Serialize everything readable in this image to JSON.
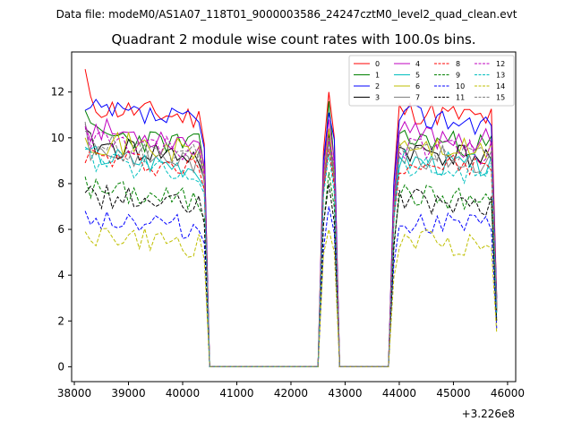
{
  "header": {
    "datafile": "Data file: modeM0/AS1A07_118T01_9000003586_24247cztM0_level2_quad_clean.evt"
  },
  "chart_data": {
    "type": "line",
    "title": "Quadrant 2 module wise count rates with 100.0s bins.",
    "xlabel": "",
    "ylabel": "",
    "x_offset_label": "+3.226e8",
    "xlim": [
      37950,
      46150
    ],
    "ylim": [
      -0.65,
      13.75
    ],
    "xticks": [
      38000,
      39000,
      40000,
      41000,
      42000,
      43000,
      44000,
      45000,
      46000
    ],
    "xtick_labels": [
      "38000",
      "39000",
      "40000",
      "41000",
      "42000",
      "43000",
      "44000",
      "45000",
      "46000"
    ],
    "yticks": [
      0,
      2,
      4,
      6,
      8,
      10,
      12
    ],
    "ytick_labels": [
      "0",
      "2",
      "4",
      "6",
      "8",
      "10",
      "12"
    ],
    "legend_position": "top-right",
    "legend_columns": 4,
    "segments": [
      {
        "x_start": 38200,
        "x_end": 40400,
        "bins": 23
      },
      {
        "x_start": 42600,
        "x_end": 42800,
        "bins": 3
      },
      {
        "x_start": 43900,
        "x_end": 45800,
        "bins": 20
      }
    ],
    "series": [
      {
        "name": "0",
        "color": "#ff0000",
        "dash": "solid",
        "level": 10.8,
        "start": 13.0,
        "peak": 12.0,
        "seed": 11
      },
      {
        "name": "1",
        "color": "#008000",
        "dash": "solid",
        "level": 9.6,
        "start": 11.2,
        "peak": 11.6,
        "seed": 23
      },
      {
        "name": "2",
        "color": "#0000ff",
        "dash": "solid",
        "level": 10.6,
        "start": 11.2,
        "peak": 11.1,
        "seed": 37
      },
      {
        "name": "3",
        "color": "#000000",
        "dash": "solid",
        "level": 9.1,
        "start": 10.4,
        "peak": 10.2,
        "seed": 41
      },
      {
        "name": "4",
        "color": "#bf00bf",
        "dash": "solid",
        "level": 9.8,
        "start": 10.6,
        "peak": 10.8,
        "seed": 53
      },
      {
        "name": "5",
        "color": "#00bfbf",
        "dash": "solid",
        "level": 8.7,
        "start": 9.5,
        "peak": 10.0,
        "seed": 67
      },
      {
        "name": "6",
        "color": "#bfbf00",
        "dash": "solid",
        "level": 9.3,
        "start": 10.0,
        "peak": 10.4,
        "seed": 71
      },
      {
        "name": "7",
        "color": "#808080",
        "dash": "solid",
        "level": 8.9,
        "start": 10.7,
        "peak": 9.9,
        "seed": 83
      },
      {
        "name": "8",
        "color": "#ff0000",
        "dash": "dashed",
        "level": 8.6,
        "start": 8.9,
        "peak": 9.5,
        "seed": 97
      },
      {
        "name": "9",
        "color": "#008000",
        "dash": "dashed",
        "level": 7.2,
        "start": 8.3,
        "peak": 8.5,
        "seed": 101
      },
      {
        "name": "10",
        "color": "#0000ff",
        "dash": "dashed",
        "level": 6.0,
        "start": 6.8,
        "peak": 7.0,
        "seed": 113
      },
      {
        "name": "11",
        "color": "#000000",
        "dash": "dashed",
        "level": 6.9,
        "start": 7.6,
        "peak": 8.0,
        "seed": 127
      },
      {
        "name": "12",
        "color": "#bf00bf",
        "dash": "dashed",
        "level": 9.3,
        "start": 10.5,
        "peak": 10.0,
        "seed": 131
      },
      {
        "name": "13",
        "color": "#00bfbf",
        "dash": "dashed",
        "level": 8.4,
        "start": 9.6,
        "peak": 9.3,
        "seed": 139
      },
      {
        "name": "14",
        "color": "#bfbf00",
        "dash": "dashed",
        "level": 5.2,
        "start": 5.9,
        "peak": 6.0,
        "seed": 149
      },
      {
        "name": "15",
        "color": "#808080",
        "dash": "dashed",
        "level": 9.1,
        "start": 10.3,
        "peak": 9.7,
        "seed": 157
      }
    ]
  }
}
